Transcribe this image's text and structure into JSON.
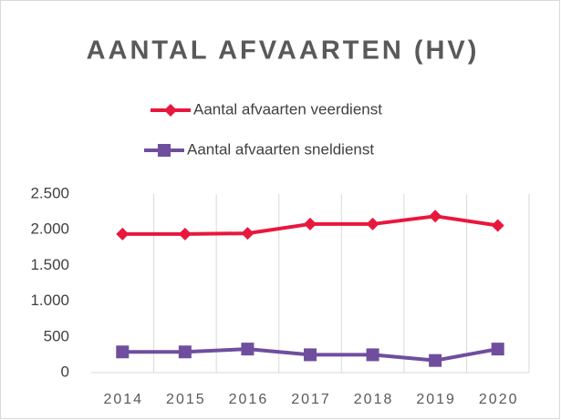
{
  "chart_data": {
    "type": "line",
    "title": "AANTAL AFVAARTEN (HV)",
    "categories": [
      "2014",
      "2015",
      "2016",
      "2017",
      "2018",
      "2019",
      "2020"
    ],
    "series": [
      {
        "name": "Aantal afvaarten veerdienst",
        "color": "#e8173e",
        "marker": "diamond",
        "values": [
          1940,
          1940,
          1950,
          2080,
          2080,
          2190,
          2060
        ]
      },
      {
        "name": "Aantal afvaarten sneldienst",
        "color": "#6f4e9e",
        "marker": "square",
        "values": [
          290,
          290,
          330,
          250,
          250,
          170,
          330
        ]
      }
    ],
    "ylim": [
      0,
      2500
    ],
    "yticks": [
      0,
      500,
      {
        "value": 1000,
        "label": "1.000"
      },
      {
        "value": 1500,
        "label": "1.500"
      },
      {
        "value": 2000,
        "label": "2.000"
      },
      {
        "value": 2500,
        "label": "2.500"
      }
    ],
    "legend": "top"
  }
}
